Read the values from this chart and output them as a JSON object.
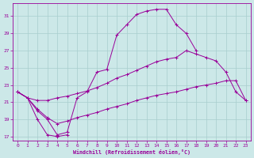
{
  "background_color": "#cce8e8",
  "grid_color": "#a8cece",
  "line_color": "#990099",
  "xlabel": "Windchill (Refroidissement éolien,°C)",
  "xlim": [
    -0.5,
    23.5
  ],
  "ylim": [
    16.5,
    32.5
  ],
  "yticks": [
    17,
    19,
    21,
    23,
    25,
    27,
    29,
    31
  ],
  "xticks": [
    0,
    1,
    2,
    3,
    4,
    5,
    6,
    7,
    8,
    9,
    10,
    11,
    12,
    13,
    14,
    15,
    16,
    17,
    18,
    19,
    20,
    21,
    22,
    23
  ],
  "lines": [
    {
      "x": [
        0,
        1,
        2,
        3,
        4,
        5
      ],
      "y": [
        22.2,
        21.5,
        19.0,
        17.2,
        17.0,
        17.2
      ]
    },
    {
      "x": [
        0,
        1,
        2,
        3,
        4,
        5,
        6,
        7,
        8,
        9,
        10,
        11,
        12,
        13,
        14,
        15,
        16,
        17,
        18
      ],
      "y": [
        22.2,
        21.5,
        20.0,
        19.0,
        17.2,
        17.5,
        21.5,
        22.2,
        24.5,
        24.8,
        28.8,
        30.0,
        31.2,
        31.6,
        31.8,
        31.8,
        30.0,
        29.0,
        27.0
      ]
    },
    {
      "x": [
        0,
        1,
        2,
        3,
        4,
        5,
        6,
        7,
        8,
        9,
        10,
        11,
        12,
        13,
        14,
        15,
        16,
        17,
        18,
        19,
        20,
        21,
        22,
        23
      ],
      "y": [
        22.2,
        21.5,
        21.2,
        21.2,
        21.5,
        21.7,
        22.0,
        22.3,
        22.7,
        23.2,
        23.8,
        24.2,
        24.7,
        25.2,
        25.7,
        26.0,
        26.2,
        27.0,
        26.6,
        26.2,
        25.8,
        24.5,
        22.2,
        21.2
      ]
    },
    {
      "x": [
        0,
        1,
        2,
        3,
        4,
        5,
        6,
        7,
        8,
        9,
        10,
        11,
        12,
        13,
        14,
        15,
        16,
        17,
        18,
        19,
        20,
        21,
        22,
        23
      ],
      "y": [
        22.2,
        21.5,
        20.2,
        19.2,
        18.5,
        18.8,
        19.2,
        19.5,
        19.8,
        20.2,
        20.5,
        20.8,
        21.2,
        21.5,
        21.8,
        22.0,
        22.2,
        22.5,
        22.8,
        23.0,
        23.2,
        23.5,
        23.5,
        21.2
      ]
    }
  ]
}
